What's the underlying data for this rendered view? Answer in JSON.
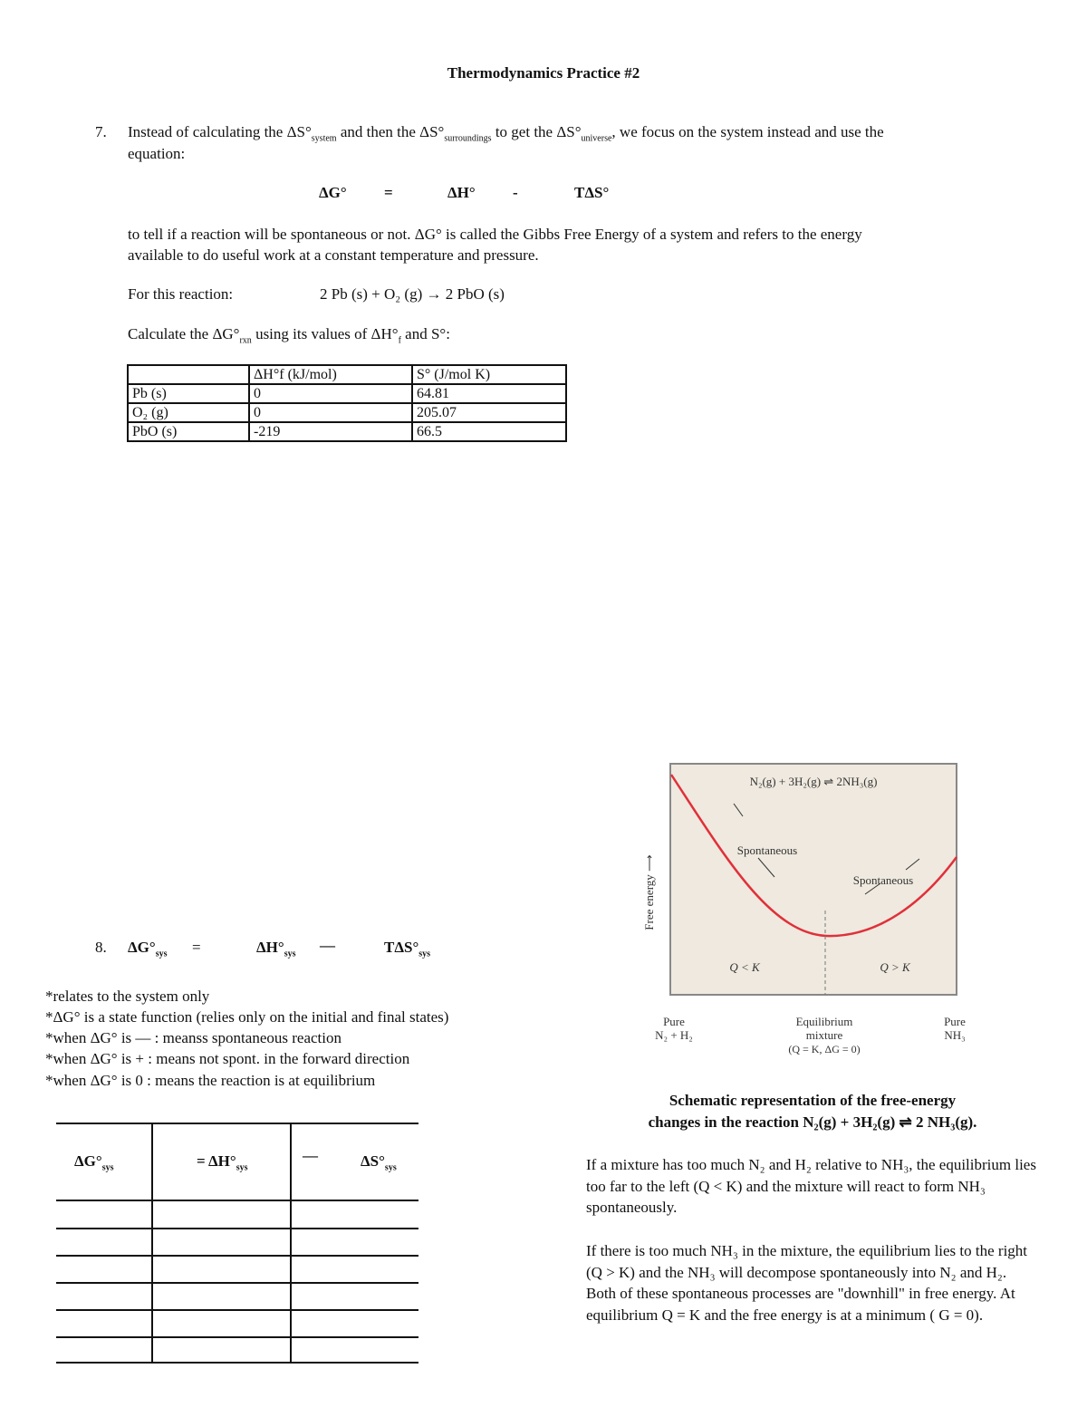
{
  "title": "Thermodynamics Practice #2",
  "q7": {
    "number": "7.",
    "line1_a": "Instead of calculating the ΔS°",
    "sub_system": "system",
    "line1_b": " and then the ΔS°",
    "sub_surr": "surroundings",
    "line1_c": " to get the ΔS°",
    "sub_univ": "universe",
    "line1_d": ", we focus on the system instead and use the",
    "line2": "equation:",
    "eq": {
      "g": "ΔG°",
      "eq": "=",
      "h": "ΔH°",
      "minus": "-",
      "tds": "TΔS°"
    },
    "para1": "to tell if a reaction will be spontaneous or not. ΔG° is called the Gibbs Free Energy of a system and refers to the energy",
    "para2": "available to do useful work at a constant temperature and pressure.",
    "reaction_label": "For this reaction:",
    "reaction": "2 Pb (s)  +  O₂ (g) → 2 PbO (s)",
    "calc_a": "Calculate the ΔG°",
    "calc_sub": "rxn",
    "calc_b": " using its values of ΔH°",
    "calc_sub2": "f",
    "calc_c": " and S°:",
    "table": {
      "headers": [
        "",
        "ΔH°f (kJ/mol)",
        "S° (J/mol K)"
      ],
      "rows": [
        [
          "Pb (s)",
          "0",
          "64.81"
        ],
        [
          "O₂ (g)",
          "0",
          "205.07"
        ],
        [
          "PbO (s)",
          "-219",
          "66.5"
        ]
      ]
    }
  },
  "q8": {
    "number": "8.",
    "g": "ΔG°",
    "sub": "sys",
    "eq": "=",
    "h": "ΔH°",
    "dash": "—",
    "tds": "TΔS°",
    "notes": [
      "*relates to the system only",
      "*ΔG° is a state function (relies only on the initial and final states)",
      "*when ΔG° is — : meanss spontaneous reaction",
      "*when ΔG° is + : means not spont. in the forward direction",
      "*when ΔG° is 0 : means the reaction is at equilibrium"
    ],
    "table": {
      "h1": "ΔG°",
      "h2": "= ΔH°",
      "h3": "—",
      "h4": "ΔS°",
      "sub": "sys"
    }
  },
  "figure": {
    "reaction": "N₂(g) + 3H₂(g) ⇌ 2NH₃(g)",
    "ylabel": "Free energy ⟶",
    "spont_left": "Spontaneous",
    "spont_right": "Spontaneous",
    "q_less": "Q < K",
    "q_greater": "Q > K",
    "x_left_1": "Pure",
    "x_left_2": "N₂ + H₂",
    "x_mid_1": "Equilibrium",
    "x_mid_2": "mixture",
    "x_mid_3": "(Q = K, ΔG = 0)",
    "x_right_1": "Pure",
    "x_right_2": "NH₃",
    "curve_color": "#e0303a",
    "bg_color": "#efe9df"
  },
  "caption1": "Schematic representation of the free-energy",
  "caption2": "changes in the reaction N₂(g) + 3H₂(g)  ⇌  2 NH₃(g).",
  "para_a": "If a mixture has too much N₂ and H₂ relative to NH₃, the equilibrium lies too far to the left (Q < K) and the mixture will react to form NH₃ spontaneously.",
  "para_b": "If there is too much NH₃ in the mixture, the equilibrium lies to the right (Q > K) and the NH₃ will decompose spontaneously into N₂ and H₂. Both of these spontaneous processes are \"downhill\" in free energy. At equilibrium Q = K and the free energy is at a minimum ( G = 0)."
}
